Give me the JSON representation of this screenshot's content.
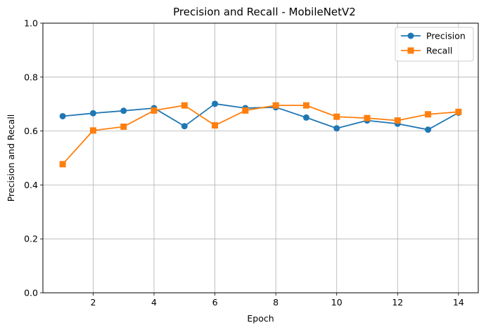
{
  "chart_data": {
    "type": "line",
    "title": "Precision and Recall - MobileNetV2",
    "xlabel": "Epoch",
    "ylabel": "Precision and Recall",
    "xlim": [
      0.35,
      14.65
    ],
    "ylim": [
      0.0,
      1.0
    ],
    "x_ticks": [
      2,
      4,
      6,
      8,
      10,
      12,
      14
    ],
    "x_tick_labels": [
      "2",
      "4",
      "6",
      "8",
      "10",
      "12",
      "14"
    ],
    "y_ticks": [
      0.0,
      0.2,
      0.4,
      0.6,
      0.8,
      1.0
    ],
    "y_tick_labels": [
      "0.0",
      "0.2",
      "0.4",
      "0.6",
      "0.8",
      "1.0"
    ],
    "grid": true,
    "legend_position": "top-right",
    "x": [
      1,
      2,
      3,
      4,
      5,
      6,
      7,
      8,
      9,
      10,
      11,
      12,
      13,
      14
    ],
    "series": [
      {
        "name": "Precision",
        "color": "#1f77b4",
        "marker": "circle",
        "values": [
          0.655,
          0.666,
          0.675,
          0.685,
          0.618,
          0.701,
          0.685,
          0.688,
          0.65,
          0.61,
          0.639,
          0.627,
          0.605,
          0.668
        ]
      },
      {
        "name": "Recall",
        "color": "#ff7f0e",
        "marker": "square",
        "values": [
          0.477,
          0.602,
          0.616,
          0.676,
          0.695,
          0.621,
          0.676,
          0.695,
          0.695,
          0.653,
          0.648,
          0.639,
          0.662,
          0.671
        ]
      }
    ]
  }
}
